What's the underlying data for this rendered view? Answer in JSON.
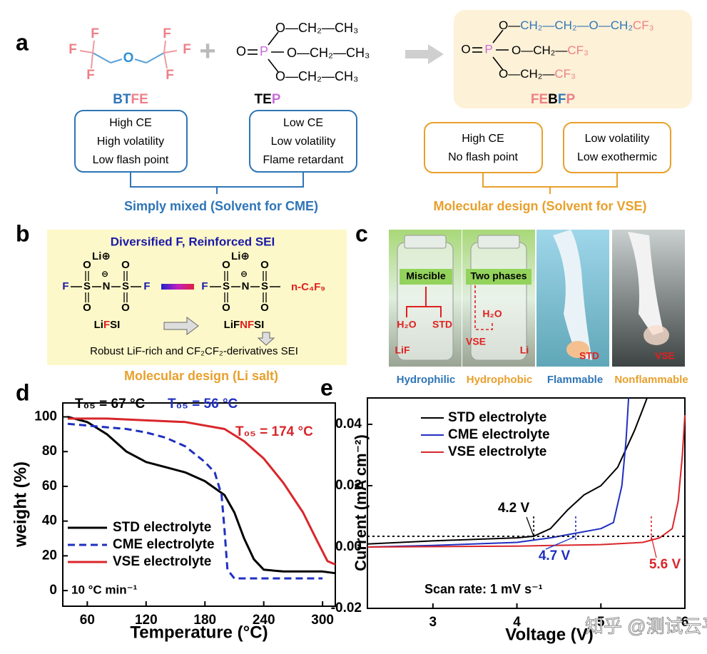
{
  "panel_a": {
    "label": "a",
    "btfe": {
      "atoms": [
        {
          "text": "F",
          "color": "#ee7f87"
        },
        {
          "text": "F",
          "color": "#ee7f87"
        },
        {
          "text": "F",
          "color": "#ee7f87"
        },
        {
          "text": "O",
          "color": "#2e8fd6"
        },
        {
          "text": "F",
          "color": "#ee7f87"
        },
        {
          "text": "F",
          "color": "#ee7f87"
        },
        {
          "text": "F",
          "color": "#ee7f87"
        }
      ],
      "name": [
        {
          "text": "BT",
          "color": "#2e75b6"
        },
        {
          "text": "FE",
          "color": "#ee7f87"
        }
      ],
      "properties": [
        "High CE",
        "High volatility",
        "Low flash point"
      ]
    },
    "tep": {
      "atoms": [
        {
          "text": "O",
          "color": "#000000"
        },
        {
          "text": "P",
          "color": "#c86dd7"
        }
      ],
      "chains": [
        "O—CH₂—CH₃",
        "O—CH₂—CH₃",
        "O—CH₂—CH₃"
      ],
      "name": [
        {
          "text": "TE",
          "color": "#000000"
        },
        {
          "text": "P",
          "color": "#c86dd7"
        }
      ],
      "properties": [
        "Low CE",
        "Low volatility",
        "Flame retardant"
      ]
    },
    "mixed_caption": "Simply mixed (Solvent for CME)",
    "febfp": {
      "atoms": [
        {
          "text": "O",
          "color": "#000000"
        },
        {
          "text": "P",
          "color": "#c86dd7"
        }
      ],
      "chains": [
        [
          {
            "text": "O—",
            "color": "#000000"
          },
          {
            "text": "CH₂—CH₂—O—CH₂",
            "color": "#2e75b6"
          },
          {
            "text": "CF₃",
            "color": "#ee7f87"
          }
        ],
        [
          {
            "text": "O—CH₂—",
            "color": "#000000"
          },
          {
            "text": "CF₃",
            "color": "#ee7f87"
          }
        ],
        [
          {
            "text": "O—CH₂—",
            "color": "#000000"
          },
          {
            "text": "CF₃",
            "color": "#ee7f87"
          }
        ]
      ],
      "name": [
        {
          "text": "FE",
          "color": "#ee7f87"
        },
        {
          "text": "B",
          "color": "#000000"
        },
        {
          "text": "F",
          "color": "#2e75b6"
        },
        {
          "text": "P",
          "color": "#ee7f87"
        }
      ]
    },
    "febfp_properties": [
      [
        "High CE",
        "No flash point"
      ],
      [
        "Low volatility",
        "Low exothermic"
      ]
    ],
    "design_caption": "Molecular design (Solvent for VSE)"
  },
  "panel_b": {
    "label": "b",
    "title": "Diversified F, Reinforced SEI",
    "lifsi": {
      "atoms": [
        "Li⊕",
        "⊖",
        "F",
        "S",
        "N",
        "S",
        "F",
        "O",
        "O",
        "O",
        "O"
      ],
      "name": [
        {
          "text": "Li",
          "color": "#000000"
        },
        {
          "text": "F",
          "color": "#e02020"
        },
        {
          "text": "SI",
          "color": "#000000"
        }
      ]
    },
    "lifnfsi": {
      "atoms": [
        "Li⊕",
        "⊖",
        "F",
        "S",
        "N",
        "S",
        "O",
        "O",
        "O",
        "O"
      ],
      "substituent": "n-C₄F₉",
      "name": [
        {
          "text": "LiF",
          "color": "#000000"
        },
        {
          "text": "NF",
          "color": "#e02020"
        },
        {
          "text": "SI",
          "color": "#000000"
        }
      ]
    },
    "summary": "Robust LiF-rich and CF₂CF₂-derivatives SEI",
    "caption": "Molecular design (Li salt)"
  },
  "panel_c": {
    "label": "c",
    "photo_texts": [
      "Miscible",
      "Two phases",
      "H₂O",
      "STD",
      "LiF",
      "H₂O",
      "VSE",
      "Li",
      "STD",
      "VSE"
    ],
    "captions": [
      {
        "text": "Hydrophilic",
        "color": "#2e75b6"
      },
      {
        "text": "Hydrophobic",
        "color": "#e8a02c"
      },
      {
        "text": "Flammable",
        "color": "#2e75b6"
      },
      {
        "text": "Nonflammable",
        "color": "#e8a02c"
      }
    ]
  },
  "chart_data": [
    {
      "type": "line",
      "label": "d",
      "xlabel": "Temperature (°C)",
      "ylabel": "weight (%)",
      "xlim": [
        35,
        313
      ],
      "ylim": [
        -9,
        108
      ],
      "xticks": [
        60,
        120,
        180,
        240,
        300
      ],
      "yticks": [
        0,
        20,
        40,
        60,
        80,
        100
      ],
      "series": [
        {
          "name": "STD electrolyte",
          "color": "#000000",
          "style": "solid",
          "x": [
            40,
            60,
            80,
            100,
            120,
            140,
            160,
            180,
            200,
            210,
            220,
            230,
            240,
            260,
            280,
            300,
            313
          ],
          "values": [
            100,
            97,
            90,
            80,
            74,
            71,
            68,
            63,
            55,
            45,
            30,
            18,
            12,
            11,
            11,
            11,
            10
          ]
        },
        {
          "name": "CME electrolyte",
          "color": "#1f2fc0",
          "style": "dashed",
          "x": [
            40,
            60,
            80,
            100,
            120,
            140,
            160,
            180,
            190,
            197,
            200,
            203,
            210,
            240,
            280,
            300
          ],
          "values": [
            96,
            95,
            94,
            93,
            91,
            88,
            83,
            74,
            68,
            55,
            35,
            12,
            7,
            7,
            7,
            7
          ]
        },
        {
          "name": "VSE electrolyte",
          "color": "#d9262b",
          "style": "solid",
          "x": [
            40,
            80,
            120,
            160,
            200,
            220,
            240,
            260,
            280,
            295,
            305,
            313
          ],
          "values": [
            99,
            99,
            98,
            97,
            93,
            86,
            76,
            62,
            45,
            28,
            17,
            15
          ]
        }
      ],
      "annotations": [
        {
          "label": "T₀₅ = 67 °C",
          "color": "#000000"
        },
        {
          "label": "T₀₅ = 56 °C",
          "color": "#1f2fc0"
        },
        {
          "label": "T₀₅ = 174 °C",
          "color": "#d9262b"
        }
      ],
      "rate_note": "10 °C min⁻¹"
    },
    {
      "type": "line",
      "label": "e",
      "xlabel": "Voltage (V)",
      "ylabel": "Current (mA cm⁻²)",
      "xlim": [
        2.22,
        6.0
      ],
      "ylim": [
        -0.02,
        0.0486
      ],
      "xticks": [
        3,
        4,
        5,
        6
      ],
      "yticks": [
        -0.02,
        {
          "value": 0,
          "label": "0.00"
        },
        0.02,
        0.04
      ],
      "series": [
        {
          "name": "STD electrolyte",
          "color": "#000000",
          "style": "solid",
          "x": [
            2.22,
            3,
            3.5,
            4,
            4.2,
            4.4,
            4.6,
            4.8,
            5,
            5.2,
            5.4,
            5.5,
            5.55
          ],
          "values": [
            0.001,
            0.002,
            0.0025,
            0.003,
            0.0035,
            0.006,
            0.012,
            0.017,
            0.02,
            0.026,
            0.038,
            0.045,
            0.0486
          ]
        },
        {
          "name": "CME electrolyte",
          "color": "#1f2fc0",
          "style": "solid",
          "x": [
            2.22,
            3,
            4,
            4.4,
            4.7,
            5,
            5.15,
            5.25,
            5.3,
            5.33
          ],
          "values": [
            0,
            0.0005,
            0.0015,
            0.003,
            0.0045,
            0.006,
            0.008,
            0.02,
            0.035,
            0.0486
          ]
        },
        {
          "name": "VSE electrolyte",
          "color": "#d9262b",
          "style": "solid",
          "x": [
            2.22,
            4,
            5,
            5.5,
            5.7,
            5.85,
            5.92,
            5.97,
            6.0
          ],
          "values": [
            0,
            0.0003,
            0.0008,
            0.0015,
            0.003,
            0.006,
            0.015,
            0.03,
            0.043
          ]
        }
      ],
      "threshold": 0.0035,
      "annotations": [
        {
          "label": "4.2 V",
          "x": 4.2,
          "color": "#000000"
        },
        {
          "label": "4.7 V",
          "x": 4.7,
          "color": "#1f2fc0"
        },
        {
          "label": "5.6 V",
          "x": 5.6,
          "color": "#d9262b"
        }
      ],
      "scan_rate": "Scan rate: 1 mV s⁻¹"
    }
  ],
  "watermark": "知乎 @测试云平台"
}
